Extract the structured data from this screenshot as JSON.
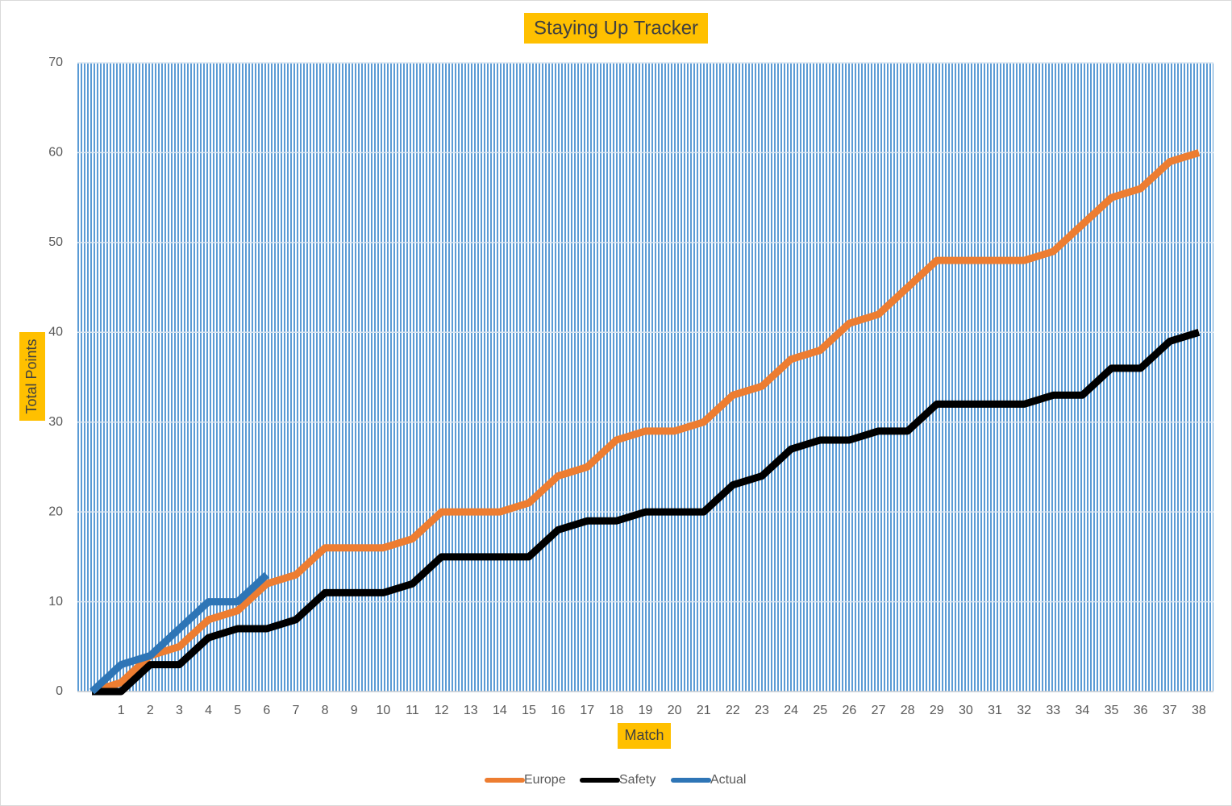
{
  "chart_data": {
    "type": "line",
    "title": "Staying Up Tracker",
    "x_label": "Match",
    "y_label": "Total Points",
    "categories": [
      null,
      "1",
      "2",
      "3",
      "4",
      "5",
      "6",
      "7",
      "8",
      "9",
      "10",
      "11",
      "12",
      "13",
      "14",
      "15",
      "16",
      "17",
      "18",
      "19",
      "20",
      "21",
      "22",
      "23",
      "24",
      "25",
      "26",
      "27",
      "28",
      "29",
      "30",
      "31",
      "32",
      "33",
      "34",
      "35",
      "36",
      "37",
      "38"
    ],
    "series": [
      {
        "name": "Europe",
        "color": "#ed7d31",
        "values": [
          0,
          1,
          4,
          5,
          8,
          9,
          12,
          13,
          16,
          16,
          16,
          17,
          20,
          20,
          20,
          21,
          24,
          25,
          28,
          29,
          29,
          30,
          33,
          34,
          37,
          38,
          41,
          42,
          45,
          48,
          48,
          48,
          48,
          49,
          52,
          55,
          56,
          59,
          60
        ]
      },
      {
        "name": "Safety",
        "color": "#000000",
        "values": [
          0,
          0,
          3,
          3,
          6,
          7,
          7,
          8,
          11,
          11,
          11,
          12,
          15,
          15,
          15,
          15,
          18,
          19,
          19,
          20,
          20,
          20,
          23,
          24,
          27,
          28,
          28,
          29,
          29,
          32,
          32,
          32,
          32,
          33,
          33,
          36,
          36,
          39,
          40
        ]
      },
      {
        "name": "Actual",
        "color": "#2e75b6",
        "values": [
          0,
          3,
          4,
          7,
          10,
          10,
          13,
          null,
          null,
          null,
          null,
          null,
          null,
          null,
          null,
          null,
          null,
          null,
          null,
          null,
          null,
          null,
          null,
          null,
          null,
          null,
          null,
          null,
          null,
          null,
          null,
          null,
          null,
          null,
          null,
          null,
          null,
          null,
          null
        ]
      }
    ],
    "ylim": [
      0,
      70
    ],
    "yticks": [
      0,
      10,
      20,
      30,
      40,
      50,
      60,
      70
    ],
    "grid": true,
    "legend": "bottom"
  }
}
